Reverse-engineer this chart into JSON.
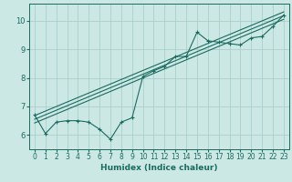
{
  "title": "",
  "xlabel": "Humidex (Indice chaleur)",
  "xlim": [
    -0.5,
    23.5
  ],
  "ylim": [
    5.5,
    10.6
  ],
  "yticks": [
    6,
    7,
    8,
    9,
    10
  ],
  "xticks": [
    0,
    1,
    2,
    3,
    4,
    5,
    6,
    7,
    8,
    9,
    10,
    11,
    12,
    13,
    14,
    15,
    16,
    17,
    18,
    19,
    20,
    21,
    22,
    23
  ],
  "bg_color": "#cce8e4",
  "grid_color": "#aacfcb",
  "line_color": "#1a6b60",
  "data_x": [
    0,
    1,
    2,
    3,
    4,
    5,
    6,
    7,
    8,
    9,
    10,
    11,
    12,
    13,
    14,
    15,
    16,
    17,
    18,
    19,
    20,
    21,
    22,
    23
  ],
  "data_y": [
    6.7,
    6.05,
    6.45,
    6.5,
    6.5,
    6.45,
    6.2,
    5.85,
    6.45,
    6.6,
    8.05,
    8.25,
    8.4,
    8.75,
    8.75,
    9.6,
    9.3,
    9.25,
    9.2,
    9.15,
    9.4,
    9.45,
    9.8,
    10.2
  ],
  "reg_lines": [
    {
      "x0": 0,
      "x1": 23,
      "y0": 6.55,
      "y1": 10.18
    },
    {
      "x0": 0,
      "x1": 23,
      "y0": 6.42,
      "y1": 10.05
    },
    {
      "x0": 0,
      "x1": 23,
      "y0": 6.68,
      "y1": 10.31
    }
  ]
}
